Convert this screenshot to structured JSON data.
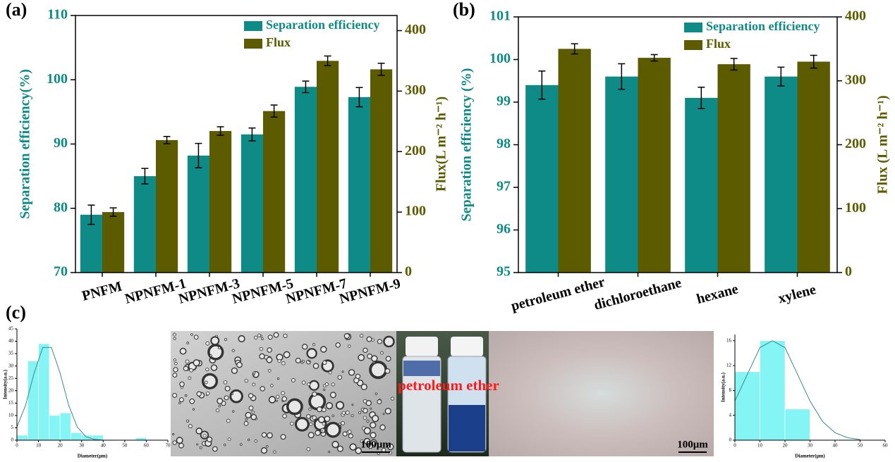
{
  "panel_labels": [
    "(a)",
    "(b)",
    "(c)"
  ],
  "images": {
    "scale_bars": [
      "100μm",
      "100μm"
    ],
    "vial_label": "petroleum ether"
  },
  "chart_data": [
    {
      "type": "bar",
      "categories": [
        "PNFM",
        "NPNFM-1",
        "NPNFM-3",
        "NPNFM-5",
        "NPNFM-7",
        "NPNFM-9"
      ],
      "ylabel": "Separation efficiency(%)",
      "y2label": "Flux(L m⁻² h⁻¹)",
      "ylim": [
        70,
        110
      ],
      "yticks": [
        70,
        80,
        90,
        100,
        110
      ],
      "y2lim": [
        0,
        425
      ],
      "y2ticks": [
        0,
        100,
        200,
        300,
        400
      ],
      "legend": "upper right",
      "series": [
        {
          "name": "Separation efficiency",
          "color": "#0e8a87",
          "values": [
            79,
            85,
            88.2,
            91.5,
            98.9,
            97.3
          ],
          "errors": [
            1.5,
            1.2,
            1.9,
            1.0,
            0.9,
            1.5
          ]
        },
        {
          "name": "Flux",
          "color": "#5d5b00",
          "axis": "y2",
          "values": [
            100,
            219,
            234,
            267,
            350,
            336
          ],
          "errors": [
            7,
            6,
            7,
            10,
            8,
            10
          ]
        }
      ]
    },
    {
      "type": "bar",
      "categories": [
        "petroleum ether",
        "dichloroethane",
        "hexane",
        "xylene"
      ],
      "ylabel": "Separation efficiency (%)",
      "y2label": "Flux (L m⁻² h⁻¹)",
      "ylim": [
        95,
        101
      ],
      "yticks": [
        95,
        96,
        97,
        98,
        99,
        100,
        101
      ],
      "y2lim": [
        0,
        400
      ],
      "y2ticks": [
        0,
        100,
        200,
        300,
        400
      ],
      "legend": "upper right",
      "series": [
        {
          "name": "Separation efficiency",
          "color": "#0e8a87",
          "values": [
            99.4,
            99.6,
            99.1,
            99.6
          ],
          "errors": [
            0.33,
            0.3,
            0.25,
            0.22
          ]
        },
        {
          "name": "Flux",
          "color": "#5d5b00",
          "axis": "y2",
          "values": [
            350,
            336,
            326,
            330
          ],
          "errors": [
            8,
            5,
            9,
            10
          ]
        }
      ]
    },
    {
      "type": "histogram",
      "bins": [
        0,
        5,
        10,
        15,
        20,
        25,
        30,
        35,
        40,
        45,
        50,
        55,
        60
      ],
      "values": [
        2,
        32,
        39,
        10,
        11,
        3,
        2,
        2,
        0,
        0,
        0,
        1
      ],
      "color": "#84f4f4",
      "fit": {
        "color": "#3a8a8a",
        "x": [
          0,
          4,
          8,
          12,
          16,
          20,
          24,
          28,
          32,
          36,
          40,
          50,
          60,
          70
        ],
        "values": [
          5.3,
          14.1,
          27.2,
          37.5,
          37.5,
          27.2,
          14.1,
          5.3,
          1.4,
          0.3,
          0,
          0,
          0,
          0
        ]
      },
      "xlabel": "Diameter(μm)",
      "ylabel": "Intensity(a.u.)",
      "xlim": [
        0,
        70
      ],
      "xticks": [
        0,
        10,
        20,
        30,
        40,
        50,
        60,
        70
      ],
      "ylim": [
        0,
        45
      ],
      "yticks": [
        0,
        5,
        10,
        15,
        20,
        25,
        30,
        35,
        40,
        45
      ]
    },
    {
      "type": "histogram",
      "bins": [
        0,
        10,
        20,
        30
      ],
      "values": [
        11,
        16,
        5
      ],
      "color": "#84f4f4",
      "fit": {
        "color": "#3a8a8a",
        "x": [
          0,
          5,
          10,
          15,
          20,
          25,
          30,
          35,
          40,
          45,
          50
        ],
        "values": [
          6.3,
          10.6,
          14.9,
          16,
          14.9,
          10.6,
          6.3,
          3.0,
          1.2,
          0.4,
          0.1
        ]
      },
      "xlabel": "Diameter(μm)",
      "ylabel": "Intensity(a.u.)",
      "xlim": [
        0,
        60
      ],
      "xticks": [
        0,
        10,
        20,
        30,
        40,
        50,
        60
      ],
      "ylim": [
        0,
        17
      ],
      "yticks": [
        0,
        4,
        8,
        12,
        16
      ]
    }
  ]
}
